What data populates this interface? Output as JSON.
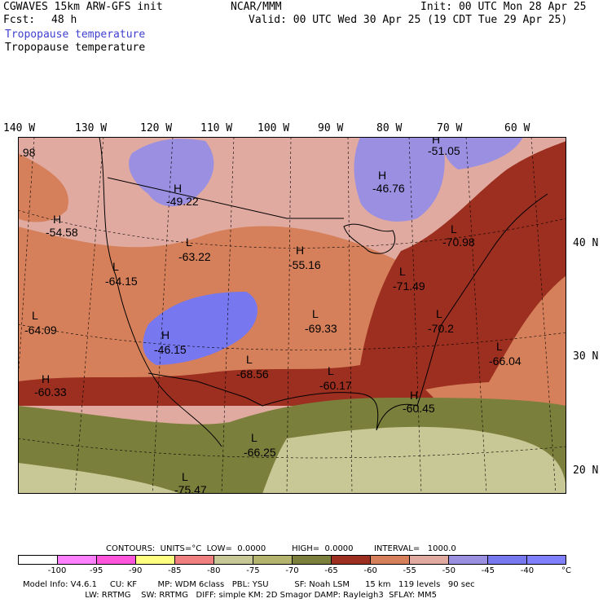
{
  "header": {
    "model": "CGWAVES 15km ARW-GFS init",
    "org": "NCAR/MMM",
    "init": "Init: 00 UTC Mon 28 Apr 25",
    "fcst_label": "Fcst:",
    "fcst_value": "48 h",
    "valid": "Valid: 00 UTC Wed 30 Apr 25 (19 CDT Tue 29 Apr 25)",
    "field_blue": "Tropopause temperature",
    "field_black": "Tropopause temperature"
  },
  "map": {
    "lon_labels": [
      "140 W",
      "130 W",
      "120 W",
      "110 W",
      "100 W",
      "90 W",
      "80 W",
      "70 W",
      "60 W"
    ],
    "lat_labels": [
      "40 N",
      "30 N",
      "20 N"
    ],
    "annotations": [
      {
        "type": "value",
        "text": ".98"
      },
      {
        "type": "H",
        "text": "H"
      },
      {
        "type": "value",
        "text": "-49.22"
      },
      {
        "type": "H",
        "text": "H"
      },
      {
        "type": "value",
        "text": "-54.58"
      },
      {
        "type": "L",
        "text": "L"
      },
      {
        "type": "value",
        "text": "-63.22"
      },
      {
        "type": "L",
        "text": "L"
      },
      {
        "type": "value",
        "text": "-64.15"
      },
      {
        "type": "L",
        "text": "L"
      },
      {
        "type": "value",
        "text": "-64.09"
      },
      {
        "type": "H",
        "text": "H"
      },
      {
        "type": "value",
        "text": "-46.15"
      },
      {
        "type": "H",
        "text": "H"
      },
      {
        "type": "value",
        "text": "-60.33"
      },
      {
        "type": "H",
        "text": "H"
      },
      {
        "type": "value",
        "text": "-55.16"
      },
      {
        "type": "H",
        "text": "H"
      },
      {
        "type": "value",
        "text": "-46.76"
      },
      {
        "type": "H",
        "text": "H"
      },
      {
        "type": "value",
        "text": "-51.05"
      },
      {
        "type": "L",
        "text": "L"
      },
      {
        "type": "value",
        "text": "-70.98"
      },
      {
        "type": "L",
        "text": "L"
      },
      {
        "type": "value",
        "text": "-71.49"
      },
      {
        "type": "L",
        "text": "L"
      },
      {
        "type": "value",
        "text": "-69.33"
      },
      {
        "type": "L",
        "text": "L"
      },
      {
        "type": "value",
        "text": "-70.2"
      },
      {
        "type": "L",
        "text": "L"
      },
      {
        "type": "value",
        "text": "-66.04"
      },
      {
        "type": "L",
        "text": "L"
      },
      {
        "type": "value",
        "text": "-68.56"
      },
      {
        "type": "L",
        "text": "L"
      },
      {
        "type": "value",
        "text": "-60.17"
      },
      {
        "type": "H",
        "text": "H"
      },
      {
        "type": "value",
        "text": "-60.45"
      },
      {
        "type": "L",
        "text": "L"
      },
      {
        "type": "value",
        "text": "-66.25"
      },
      {
        "type": "L",
        "text": "L"
      },
      {
        "type": "value",
        "text": "-75.47"
      }
    ]
  },
  "footer": {
    "contours": "CONTOURS:  UNITS=°C  LOW=  0.0000          HIGH=  0.0000        INTERVAL=   1000.0",
    "scale_colors": [
      "#ffffff",
      "#ff80ff",
      "#ff55dd",
      "#ffff80",
      "#f08080",
      "#c8c896",
      "#b4b46e",
      "#7b7f3c",
      "#9c2f1f",
      "#d5805a",
      "#e0aaa0",
      "#9a8fe0",
      "#7777f0",
      "#8080ff"
    ],
    "scale_ticks": [
      "-100",
      "-95",
      "-90",
      "-85",
      "-80",
      "-75",
      "-70",
      "-65",
      "-60",
      "-55",
      "-50",
      "-45",
      "-40",
      "°C"
    ],
    "model_info": "Model Info: V4.6.1     CU: KF        MP: WDM 6class   PBL: YSU          SF: Noah LSM      15 km   119 levels   90 sec",
    "model_info2": "                        LW: RRTMG    SW: RRTMG   DIFF: simple KM: 2D Smagor DAMP: Rayleigh3  SFLAY: MM5"
  }
}
